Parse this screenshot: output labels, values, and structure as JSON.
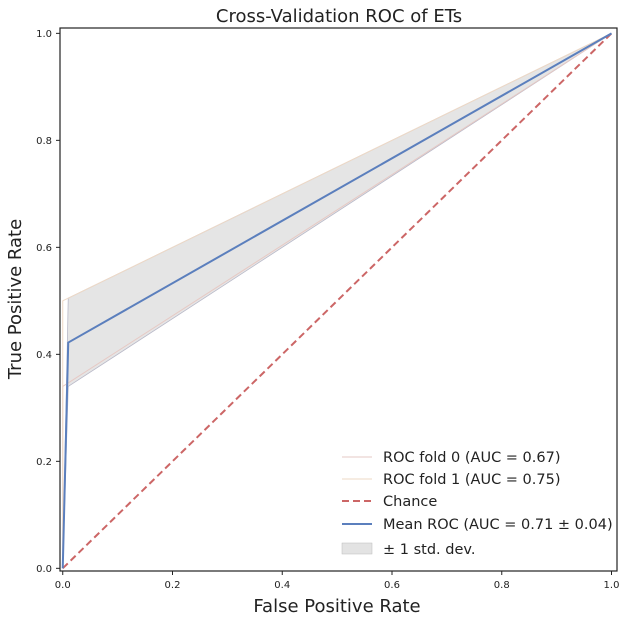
{
  "chart_data": {
    "type": "line",
    "title": "Cross-Validation ROC of ETs",
    "xlabel": "False Positive Rate",
    "ylabel": "True Positive Rate",
    "xlim": [
      -0.005,
      1.01
    ],
    "ylim": [
      -0.005,
      1.01
    ],
    "x_ticks": [
      0.0,
      0.2,
      0.4,
      0.6,
      0.8,
      1.0
    ],
    "y_ticks": [
      0.0,
      0.2,
      0.4,
      0.6,
      0.8,
      1.0
    ],
    "x_tick_labels": [
      "0.0",
      "0.2",
      "0.4",
      "0.6",
      "0.8",
      "1.0"
    ],
    "y_tick_labels": [
      "0.0",
      "0.2",
      "0.4",
      "0.6",
      "0.8",
      "1.0"
    ],
    "grid": false,
    "legend_position": "lower-right",
    "colors": {
      "fold0": "#e6c9c4",
      "fold1": "#eed9c6",
      "chance": "#cc6666",
      "mean": "#5b7fbd",
      "band_fill": "#cccccc",
      "axis": "#222222"
    },
    "series": [
      {
        "name": "ROC fold 0 (AUC = 0.67)",
        "style": "thin",
        "x": [
          0.0,
          0.0,
          1.0
        ],
        "y": [
          0.0,
          0.34,
          1.0
        ]
      },
      {
        "name": "ROC fold 1 (AUC = 0.75)",
        "style": "thin",
        "x": [
          0.0,
          0.0,
          1.0
        ],
        "y": [
          0.0,
          0.5,
          1.0
        ]
      },
      {
        "name": "Chance",
        "style": "dashed",
        "x": [
          0.0,
          1.0
        ],
        "y": [
          0.0,
          1.0
        ]
      },
      {
        "name": "Mean ROC (AUC = 0.71 ± 0.04)",
        "style": "mean",
        "x": [
          0.0,
          0.01,
          1.0
        ],
        "y": [
          0.0,
          0.422,
          1.0
        ]
      }
    ],
    "band": {
      "name": "± 1 std. dev.",
      "x": [
        0.0,
        0.01,
        1.0
      ],
      "upper": [
        0.0,
        0.505,
        1.0
      ],
      "lower": [
        0.0,
        0.34,
        1.0
      ]
    }
  }
}
